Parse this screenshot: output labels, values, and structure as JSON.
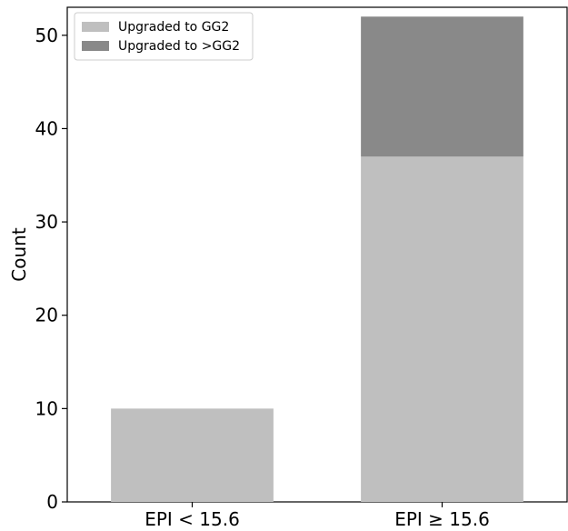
{
  "chart_data": {
    "type": "bar",
    "stacked": true,
    "categories": [
      "EPI < 15.6",
      "EPI ≥ 15.6"
    ],
    "series": [
      {
        "name": "Upgraded to GG2",
        "values": [
          10,
          37
        ],
        "color": "#bfbfbf"
      },
      {
        "name": "Upgraded to >GG2",
        "values": [
          0,
          15
        ],
        "color": "#898989"
      }
    ],
    "title": "",
    "xlabel": "",
    "ylabel": "Count",
    "ylim": [
      0,
      53
    ],
    "yticks": [
      0,
      10,
      20,
      30,
      40,
      50
    ],
    "grid": false,
    "legend_position": "top-left"
  }
}
